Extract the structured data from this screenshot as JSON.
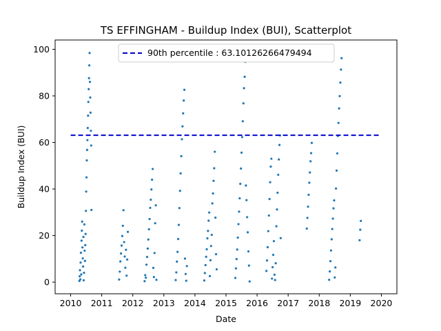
{
  "chart_data": {
    "type": "scatter",
    "title": "TS EFFINGHAM - Buildup Index (BUI), Scatterplot",
    "xlabel": "Date",
    "ylabel": "Buildup Index (BUI)",
    "xlim": [
      2009.5,
      2020.5
    ],
    "ylim": [
      -5,
      104
    ],
    "x_ticks": [
      2010,
      2011,
      2012,
      2013,
      2014,
      2015,
      2016,
      2017,
      2018,
      2019,
      2020
    ],
    "x_tick_labels": [
      "2010",
      "2011",
      "2012",
      "2013",
      "2014",
      "2015",
      "2016",
      "2017",
      "2018",
      "2019",
      "2020"
    ],
    "y_ticks": [
      0,
      20,
      40,
      60,
      80,
      100
    ],
    "y_tick_labels": [
      "0",
      "20",
      "40",
      "60",
      "80",
      "100"
    ],
    "grid": false,
    "colors": {
      "points": "#1f77b4",
      "reference_line": "#0000cc"
    },
    "reference_line": {
      "label": "90th percentile : 63.10126266479494",
      "y": 63.10126266479494,
      "x_range": [
        2010,
        2020
      ],
      "style": "dashed"
    },
    "legend": {
      "placement": "top-center",
      "entries": [
        "90th percentile : 63.10126266479494"
      ]
    },
    "series": [
      {
        "points": [
          [
            2010.28,
            0.5
          ],
          [
            2010.29,
            2.5
          ],
          [
            2010.3,
            5.1
          ],
          [
            2010.31,
            1.2
          ],
          [
            2010.32,
            8.4
          ],
          [
            2010.33,
            12.6
          ],
          [
            2010.34,
            3.3
          ],
          [
            2010.35,
            17.8
          ],
          [
            2010.36,
            22.1
          ],
          [
            2010.37,
            26.0
          ],
          [
            2010.38,
            14.9
          ],
          [
            2010.39,
            10.2
          ],
          [
            2010.4,
            6.7
          ],
          [
            2010.41,
            19.4
          ],
          [
            2010.42,
            0.8
          ],
          [
            2010.43,
            4.0
          ],
          [
            2010.44,
            24.8
          ],
          [
            2010.45,
            13.5
          ],
          [
            2010.46,
            9.1
          ],
          [
            2010.47,
            15.9
          ],
          [
            2010.48,
            20.7
          ],
          [
            2010.49,
            30.6
          ],
          [
            2010.5,
            38.9
          ],
          [
            2010.51,
            45.0
          ],
          [
            2010.52,
            52.3
          ],
          [
            2010.53,
            56.8
          ],
          [
            2010.54,
            61.0
          ],
          [
            2010.55,
            66.2
          ],
          [
            2010.56,
            71.5
          ],
          [
            2010.57,
            77.4
          ],
          [
            2010.58,
            82.9
          ],
          [
            2010.59,
            87.6
          ],
          [
            2010.6,
            93.1
          ],
          [
            2010.61,
            98.4
          ],
          [
            2010.62,
            86.0
          ],
          [
            2010.63,
            79.3
          ],
          [
            2010.64,
            72.8
          ],
          [
            2010.65,
            65.0
          ],
          [
            2010.66,
            58.7
          ],
          [
            2010.67,
            31.0
          ],
          [
            2011.56,
            1.1
          ],
          [
            2011.58,
            4.5
          ],
          [
            2011.6,
            8.9
          ],
          [
            2011.62,
            12.3
          ],
          [
            2011.64,
            15.7
          ],
          [
            2011.66,
            19.8
          ],
          [
            2011.68,
            24.2
          ],
          [
            2011.7,
            30.9
          ],
          [
            2011.72,
            17.2
          ],
          [
            2011.74,
            11.0
          ],
          [
            2011.76,
            6.2
          ],
          [
            2011.78,
            13.9
          ],
          [
            2011.8,
            2.8
          ],
          [
            2011.82,
            9.7
          ],
          [
            2011.84,
            21.6
          ],
          [
            2012.38,
            0.4
          ],
          [
            2012.4,
            3.0
          ],
          [
            2012.42,
            1.9
          ],
          [
            2012.44,
            7.5
          ],
          [
            2012.46,
            10.8
          ],
          [
            2012.48,
            14.4
          ],
          [
            2012.5,
            18.3
          ],
          [
            2012.52,
            22.7
          ],
          [
            2012.54,
            27.1
          ],
          [
            2012.56,
            31.9
          ],
          [
            2012.58,
            35.4
          ],
          [
            2012.6,
            39.8
          ],
          [
            2012.62,
            44.0
          ],
          [
            2012.64,
            48.6
          ],
          [
            2012.66,
            6.1
          ],
          [
            2012.68,
            2.2
          ],
          [
            2012.7,
            12.5
          ],
          [
            2012.72,
            25.3
          ],
          [
            2012.74,
            33.0
          ],
          [
            2012.76,
            1.0
          ],
          [
            2013.38,
            0.9
          ],
          [
            2013.4,
            4.2
          ],
          [
            2013.42,
            8.8
          ],
          [
            2013.44,
            13.0
          ],
          [
            2013.46,
            18.5
          ],
          [
            2013.48,
            24.6
          ],
          [
            2013.5,
            31.8
          ],
          [
            2013.52,
            39.2
          ],
          [
            2013.54,
            46.7
          ],
          [
            2013.56,
            54.1
          ],
          [
            2013.58,
            61.4
          ],
          [
            2013.6,
            66.9
          ],
          [
            2013.62,
            72.5
          ],
          [
            2013.64,
            78.0
          ],
          [
            2013.66,
            82.6
          ],
          [
            2013.68,
            10.1
          ],
          [
            2013.7,
            3.5
          ],
          [
            2013.72,
            0.6
          ],
          [
            2013.74,
            6.9
          ],
          [
            2014.3,
            0.7
          ],
          [
            2014.32,
            3.9
          ],
          [
            2014.34,
            7.3
          ],
          [
            2014.36,
            10.9
          ],
          [
            2014.38,
            14.1
          ],
          [
            2014.4,
            18.8
          ],
          [
            2014.42,
            22.0
          ],
          [
            2014.44,
            26.4
          ],
          [
            2014.46,
            29.9
          ],
          [
            2014.48,
            2.6
          ],
          [
            2014.5,
            9.4
          ],
          [
            2014.52,
            15.5
          ],
          [
            2014.54,
            20.3
          ],
          [
            2014.56,
            33.8
          ],
          [
            2014.58,
            38.1
          ],
          [
            2014.6,
            43.5
          ],
          [
            2014.62,
            48.9
          ],
          [
            2014.64,
            56.0
          ],
          [
            2014.66,
            27.7
          ],
          [
            2014.68,
            12.0
          ],
          [
            2014.7,
            5.5
          ],
          [
            2015.3,
            1.8
          ],
          [
            2015.32,
            5.9
          ],
          [
            2015.34,
            9.9
          ],
          [
            2015.36,
            14.0
          ],
          [
            2015.38,
            19.1
          ],
          [
            2015.4,
            24.9
          ],
          [
            2015.42,
            30.3
          ],
          [
            2015.44,
            36.0
          ],
          [
            2015.46,
            42.2
          ],
          [
            2015.48,
            48.8
          ],
          [
            2015.5,
            55.6
          ],
          [
            2015.52,
            62.3
          ],
          [
            2015.54,
            69.1
          ],
          [
            2015.56,
            76.8
          ],
          [
            2015.58,
            83.3
          ],
          [
            2015.6,
            88.2
          ],
          [
            2015.62,
            94.6
          ],
          [
            2015.64,
            41.5
          ],
          [
            2015.66,
            35.2
          ],
          [
            2015.68,
            27.9
          ],
          [
            2015.7,
            21.4
          ],
          [
            2015.72,
            13.2
          ],
          [
            2015.74,
            7.1
          ],
          [
            2015.76,
            0.3
          ],
          [
            2016.3,
            4.8
          ],
          [
            2016.32,
            9.3
          ],
          [
            2016.34,
            15.0
          ],
          [
            2016.36,
            21.9
          ],
          [
            2016.38,
            28.6
          ],
          [
            2016.4,
            35.7
          ],
          [
            2016.42,
            42.9
          ],
          [
            2016.44,
            49.6
          ],
          [
            2016.46,
            53.0
          ],
          [
            2016.48,
            1.5
          ],
          [
            2016.5,
            6.4
          ],
          [
            2016.52,
            11.7
          ],
          [
            2016.54,
            17.6
          ],
          [
            2016.56,
            3.2
          ],
          [
            2016.58,
            0.9
          ],
          [
            2016.6,
            8.1
          ],
          [
            2016.62,
            24.0
          ],
          [
            2016.64,
            31.2
          ],
          [
            2016.66,
            38.4
          ],
          [
            2016.68,
            46.1
          ],
          [
            2016.7,
            52.7
          ],
          [
            2016.72,
            58.9
          ],
          [
            2016.74,
            63.0
          ],
          [
            2016.76,
            18.9
          ],
          [
            2017.6,
            23.0
          ],
          [
            2017.62,
            27.6
          ],
          [
            2017.64,
            32.4
          ],
          [
            2017.66,
            37.5
          ],
          [
            2017.68,
            42.7
          ],
          [
            2017.7,
            47.1
          ],
          [
            2017.72,
            51.9
          ],
          [
            2017.74,
            55.4
          ],
          [
            2017.76,
            59.8
          ],
          [
            2018.32,
            1.0
          ],
          [
            2018.34,
            4.6
          ],
          [
            2018.36,
            9.0
          ],
          [
            2018.38,
            13.6
          ],
          [
            2018.4,
            18.4
          ],
          [
            2018.42,
            22.8
          ],
          [
            2018.44,
            27.3
          ],
          [
            2018.46,
            31.7
          ],
          [
            2018.48,
            35.1
          ],
          [
            2018.5,
            2.0
          ],
          [
            2018.52,
            6.3
          ],
          [
            2018.54,
            40.2
          ],
          [
            2018.56,
            47.9
          ],
          [
            2018.58,
            55.3
          ],
          [
            2018.6,
            62.8
          ],
          [
            2018.62,
            68.4
          ],
          [
            2018.64,
            74.6
          ],
          [
            2018.66,
            79.9
          ],
          [
            2018.68,
            85.7
          ],
          [
            2018.7,
            91.3
          ],
          [
            2018.72,
            96.2
          ],
          [
            2019.3,
            18.0
          ],
          [
            2019.32,
            22.5
          ],
          [
            2019.34,
            26.3
          ]
        ]
      }
    ]
  }
}
